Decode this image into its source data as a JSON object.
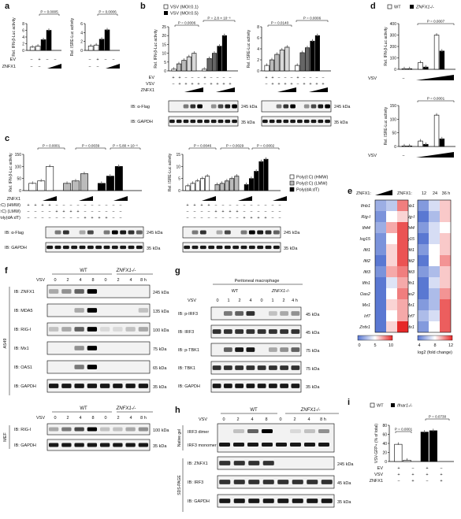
{
  "panel_letters": {
    "a": "a",
    "b": "b",
    "c": "c",
    "d": "d",
    "e": "e",
    "f": "f",
    "g": "g",
    "h": "h",
    "i": "i"
  },
  "legends": {
    "b": [
      "VSV (MOI:0.1)",
      "VSV (MOI:0.5)"
    ],
    "c": [
      "Poly(I:C) (HMW)",
      "Poly(I:C) (LMW)",
      "Poly(dA:dT)"
    ],
    "d": [
      "WT",
      "ZNFX1-/-"
    ],
    "i": [
      "WT",
      "Ifnar1-/-"
    ]
  },
  "ylabels": {
    "ifnb": "Rel. IFN-β-Luc activity",
    "isre": "Rel. ISRE-Luc activity",
    "i": "VSV-GFP+ (% of total)"
  },
  "pvalues": {
    "a1": "P = 0.0005",
    "a2": "P = 0.0006",
    "b1a": "P = 0.0006",
    "b1b": "P = 2.8 × 10⁻⁶",
    "b2a": "P = 0.0140",
    "b2b": "P = 0.0006",
    "c1a": "P = 0.0001",
    "c1b": "P = 0.0039",
    "c1c": "P = 5.80 × 10⁻⁶",
    "c2a": "P = 0.0046",
    "c2b": "P = 0.0029",
    "c2c": "P = 0.0002",
    "d1": "P = 0.0007",
    "d2": "P = 0.0001",
    "i1": "P = 0.0001",
    "i2": "P = 0.0730"
  },
  "row_labels": {
    "ev": "EV",
    "znfx1": "ZNFX1",
    "vsv": "VSV",
    "hmw": "Poly(I:C) (HMW)",
    "lmw": "Poly(I:C) (LMW)",
    "dadt": "Poly(dA:dT)"
  },
  "blots": {
    "flag": "IB: α-Flag",
    "gapdh": "IB: GAPDH",
    "kda245": "245 kDa",
    "kda35": "35 kDa",
    "f_ab": [
      "IB: ZNFX1",
      "IB: MDA5",
      "IB: RIG-I",
      "IB: Mx1",
      "IB: OAS1",
      "IB: GAPDH"
    ],
    "f_kda": [
      "245 kDa",
      "135 kDa",
      "100 kDa",
      "75 kDa",
      "65 kDa",
      "35 kDa"
    ],
    "g_ab": [
      "IB: p-IRF3",
      "IB: IRF3",
      "IB: p-TBK1",
      "IB: TBK1",
      "IB: GAPDH"
    ],
    "g_kda": [
      "45 kDa",
      "45 kDa",
      "75 kDa",
      "75 kDa",
      "35 kDa"
    ],
    "mef_ab": [
      "IB: RIG-I",
      "IB: GAPDH"
    ],
    "mef_kda": [
      "100 kDa",
      "35 kDa"
    ],
    "h_top": [
      "IRF3 dimer",
      "IRF3 monomer"
    ],
    "h_ab": [
      "IB: ZNFX1",
      "IB: IRF3",
      "IB: GAPDH"
    ],
    "h_kda": [
      "245 kDa",
      "45 kDa",
      "35 kDa"
    ],
    "native": "Native gel",
    "sds": "SDS-PAGE",
    "a549": "A549",
    "mef": "MEF",
    "macrophage": "Peritoneal macrophage",
    "wt": "WT",
    "ko": "ZNFX1-/-",
    "time4": [
      "0",
      "2",
      "4",
      "8",
      "0",
      "2",
      "4",
      "8 h"
    ],
    "time_g": [
      "0",
      "1",
      "2",
      "4",
      "0",
      "1",
      "2",
      "4 h"
    ]
  },
  "heatmap": {
    "genes": [
      "Ifnb1",
      "Rig-I",
      "Ifi44",
      "Isg15",
      "Ifit1",
      "Ifit2",
      "Ifit3",
      "Ifih1",
      "Oas2",
      "Mx1",
      "Irf7",
      "Znfx1"
    ],
    "left_header": "ZNFX1:",
    "right_header": [
      "ZNFX1:",
      "12",
      "24",
      "36 h"
    ],
    "left_scale": [
      "0",
      "5",
      "10"
    ],
    "right_scale": [
      "4",
      "8",
      "12"
    ],
    "right_scale_label": "log2 (fold change)"
  },
  "chart_data": [
    {
      "panel": "a-left",
      "type": "bar",
      "ylabel": "Rel. IFN-β-Luc activity",
      "ylim": [
        0,
        8
      ],
      "yticks": [
        0,
        2,
        4,
        6,
        8
      ],
      "values": [
        1,
        1.3,
        3.2,
        6
      ]
    },
    {
      "panel": "a-right",
      "type": "bar",
      "ylabel": "Rel. ISRE-Luc activity",
      "ylim": [
        0,
        6
      ],
      "yticks": [
        0,
        2,
        4,
        6
      ],
      "values": [
        1,
        1.2,
        2.5,
        4.6
      ]
    },
    {
      "panel": "b-left",
      "type": "bar",
      "ylabel": "Rel. IFN-β-Luc activity",
      "ylim": [
        0,
        25
      ],
      "yticks": [
        0,
        5,
        10,
        15,
        20,
        25
      ],
      "series": [
        {
          "name": "VSV (MOI:0.1)",
          "values": [
            1,
            4,
            6,
            8,
            10
          ]
        },
        {
          "name": "VSV (MOI:0.5)",
          "values": [
            1,
            7,
            10,
            14,
            20
          ]
        }
      ]
    },
    {
      "panel": "b-right",
      "type": "bar",
      "ylabel": "Rel. ISRE-Luc activity",
      "ylim": [
        0,
        8
      ],
      "yticks": [
        0,
        2,
        4,
        6,
        8
      ],
      "series": [
        {
          "name": "VSV (MOI:0.1)",
          "values": [
            1,
            2,
            3,
            3.8,
            4.3
          ]
        },
        {
          "name": "VSV (MOI:0.5)",
          "values": [
            1,
            3.3,
            4.2,
            5.4,
            6.4
          ]
        }
      ]
    },
    {
      "panel": "c-left",
      "type": "bar",
      "ylabel": "Rel. IFN-β-Luc activity",
      "ylim": [
        0,
        150
      ],
      "yticks": [
        0,
        50,
        100,
        150
      ],
      "series": [
        {
          "name": "Poly(I:C) (HMW)",
          "values": [
            30,
            40,
            100
          ]
        },
        {
          "name": "Poly(I:C) (LMW)",
          "values": [
            30,
            40,
            70
          ]
        },
        {
          "name": "Poly(dA:dT)",
          "values": [
            30,
            60,
            100
          ]
        }
      ]
    },
    {
      "panel": "c-right",
      "type": "bar",
      "ylabel": "Rel. ISRE-Luc activity",
      "ylim": [
        0,
        15
      ],
      "yticks": [
        0,
        5,
        10,
        15
      ],
      "series": [
        {
          "name": "Poly(I:C) (HMW)",
          "values": [
            2,
            3,
            4,
            5,
            6
          ]
        },
        {
          "name": "Poly(I:C) (LMW)",
          "values": [
            2.5,
            3,
            4,
            5,
            6
          ]
        },
        {
          "name": "Poly(dA:dT)",
          "values": [
            2.5,
            5,
            8,
            12,
            13
          ]
        }
      ]
    },
    {
      "panel": "d-top",
      "type": "bar",
      "ylabel": "Rel. IFN-β-Luc activity",
      "ylim": [
        0,
        400
      ],
      "yticks": [
        0,
        100,
        200,
        300,
        400
      ],
      "series": [
        {
          "name": "WT",
          "values": [
            5,
            60,
            300
          ]
        },
        {
          "name": "ZNFX1-/-",
          "values": [
            5,
            20,
            160
          ]
        }
      ]
    },
    {
      "panel": "d-bottom",
      "type": "bar",
      "ylabel": "Rel. ISRE-Luc activity",
      "ylim": [
        0,
        150
      ],
      "yticks": [
        0,
        50,
        100,
        150
      ],
      "series": [
        {
          "name": "WT",
          "values": [
            2,
            20,
            115
          ]
        },
        {
          "name": "ZNFX1-/-",
          "values": [
            2,
            8,
            28
          ]
        }
      ]
    },
    {
      "panel": "i",
      "type": "bar",
      "ylabel": "VSV-GFP+ (% of total)",
      "ylim": [
        0,
        80
      ],
      "yticks": [
        0,
        20,
        40,
        60,
        80
      ],
      "series": [
        {
          "name": "WT",
          "values": [
            38,
            3
          ]
        },
        {
          "name": "Ifnar1-/-",
          "values": [
            65,
            68
          ]
        }
      ]
    }
  ]
}
